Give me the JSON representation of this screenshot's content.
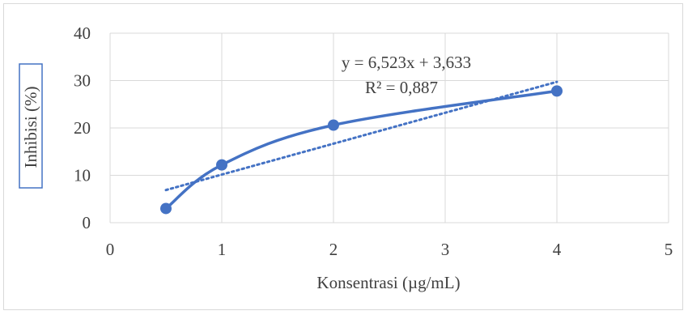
{
  "chart_data": {
    "type": "scatter",
    "xlabel": "Konsentrasi (µg/mL)",
    "ylabel": "Inhibisi (%)",
    "xlim": [
      0,
      5
    ],
    "ylim": [
      0,
      40
    ],
    "x_ticks": [
      "0",
      "1",
      "2",
      "3",
      "4",
      "5"
    ],
    "y_ticks": [
      "0",
      "10",
      "20",
      "30",
      "40"
    ],
    "grid": true,
    "series": [
      {
        "x": [
          0.5,
          1,
          2,
          4
        ],
        "y": [
          3.0,
          12.2,
          20.6,
          27.8
        ],
        "line": "smooth",
        "color": "#4472C4"
      }
    ],
    "trendline": {
      "type": "linear",
      "slope": 6.523,
      "intercept": 3.633,
      "x_range": [
        0.5,
        4
      ],
      "style": "dotted",
      "color": "#4472C4"
    },
    "annotations": {
      "equation": "y = 6,523x + 3,633",
      "r_squared": "R² = 0,887"
    }
  }
}
